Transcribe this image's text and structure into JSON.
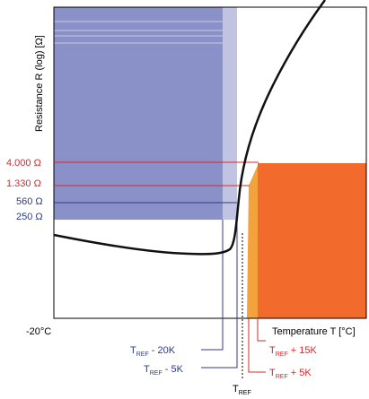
{
  "chart_data": {
    "type": "line",
    "title": "",
    "xlabel": "Temperature T [°C]",
    "ylabel": "Resistance R (log) [Ω]",
    "y_scale": "log",
    "x_start_label": "-20°C",
    "reference_temperature": {
      "base": "T",
      "sub": "REF"
    },
    "thresholds": [
      {
        "name": "4.000 Ω",
        "color": "#d8282a"
      },
      {
        "name": "1.330 Ω",
        "color": "#d8282a"
      },
      {
        "name": "560 Ω",
        "color": "#2e3a8c"
      },
      {
        "name": "250 Ω",
        "color": "#2e3a8c"
      }
    ],
    "temperature_markers": [
      {
        "base": "T",
        "sub": "REF",
        "suffix": " - 20K",
        "color": "#2e3a8c"
      },
      {
        "base": "T",
        "sub": "REF",
        "suffix": " - 5K",
        "color": "#2e3a8c"
      },
      {
        "base": "T",
        "sub": "REF",
        "suffix": " + 15K",
        "color": "#d8282a"
      },
      {
        "base": "T",
        "sub": "REF",
        "suffix": " + 5K",
        "color": "#d8282a"
      }
    ],
    "regions": [
      {
        "name": "low-resistance-zone",
        "color": "#8a90c8"
      },
      {
        "name": "low-transition-zone",
        "color": "#c0c4e2"
      },
      {
        "name": "high-resistance-zone",
        "color": "#f26a2c"
      },
      {
        "name": "high-transition-zone",
        "color": "#f4a33c"
      }
    ],
    "curve": {
      "name": "",
      "color": "#111111"
    }
  }
}
